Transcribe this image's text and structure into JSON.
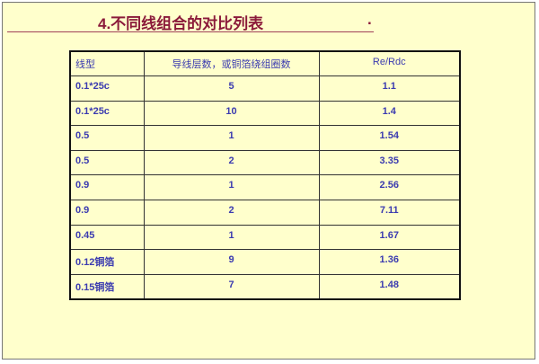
{
  "title": "4.不同线组合的对比列表",
  "title_suffix": ".",
  "table": {
    "headers": [
      "线型",
      "导线层数，或铜箔绕组圈数",
      "Re/Rdc"
    ],
    "rows": [
      [
        "0.1*25c",
        "5",
        "1.1"
      ],
      [
        "0.1*25c",
        "10",
        "1.4"
      ],
      [
        "0.5",
        "1",
        "1.54"
      ],
      [
        "0.5",
        "2",
        "3.35"
      ],
      [
        "0.9",
        "1",
        "2.56"
      ],
      [
        "0.9",
        "2",
        "7.11"
      ],
      [
        "0.45",
        "1",
        "1.67"
      ],
      [
        "0.12铜箔",
        "9",
        "1.36"
      ],
      [
        "0.15铜箔",
        "7",
        "1.48"
      ]
    ]
  },
  "colors": {
    "background": "#ffffcc",
    "title": "#8b1a3a",
    "table_text": "#3b3bb0"
  }
}
